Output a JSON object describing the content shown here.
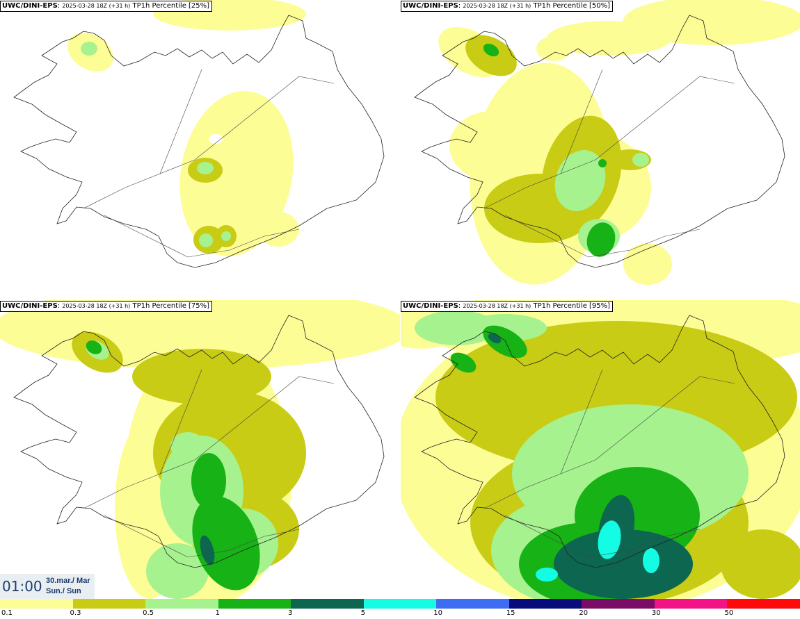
{
  "panels": [
    {
      "model": "UWC/DINI-EPS",
      "run": "2025-03-28 18Z (+31 h)",
      "product": "TP1h Percentile [25%]"
    },
    {
      "model": "UWC/DINI-EPS",
      "run": "2025-03-28 18Z (+31 h)",
      "product": "TP1h Percentile [50%]"
    },
    {
      "model": "UWC/DINI-EPS",
      "run": "2025-03-28 18Z (+31 h)",
      "product": "TP1h Percentile [75%]"
    },
    {
      "model": "UWC/DINI-EPS",
      "run": "2025-03-28 18Z (+31 h)",
      "product": "TP1h Percentile [95%]"
    }
  ],
  "valid_time": {
    "time": "01:00",
    "date": "30.mar./ Mar",
    "day": "Sun./ Sun"
  },
  "legend": {
    "colors": [
      "#fdfd96",
      "#c8cc14",
      "#a6f28f",
      "#16b216",
      "#0c6650",
      "#14fde4",
      "#3e6cf2",
      "#080c7a",
      "#7a0c68",
      "#f21487",
      "#fd0a0a"
    ],
    "ticks": [
      "0.1",
      "0.3",
      "0.5",
      "1",
      "3",
      "5",
      "10",
      "15",
      "20",
      "30",
      "50"
    ]
  }
}
